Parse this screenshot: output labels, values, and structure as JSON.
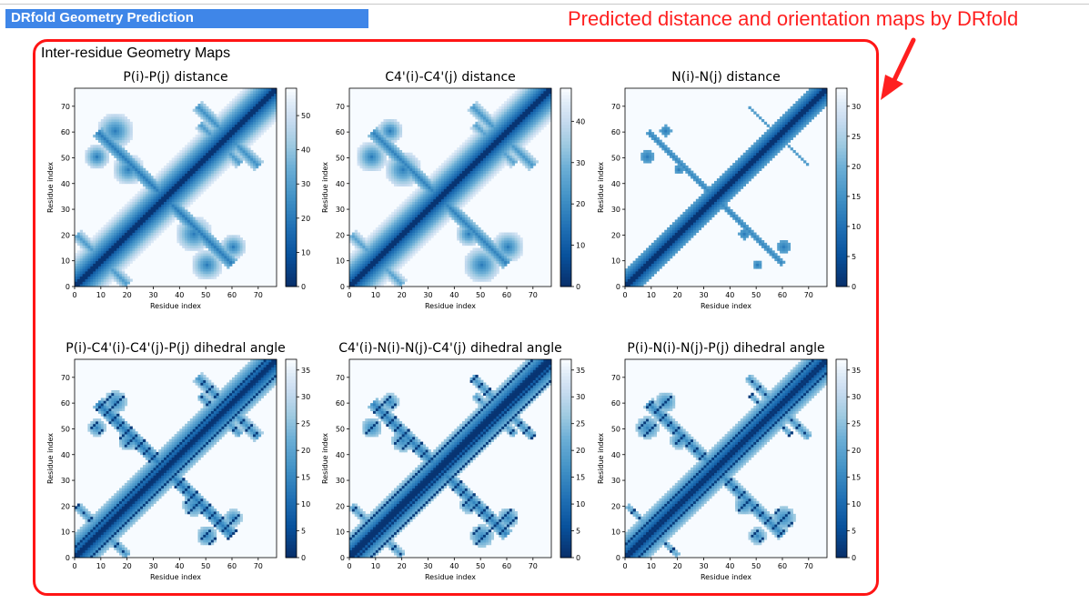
{
  "header": {
    "title": "DRfold Geometry Prediction"
  },
  "annotation": {
    "text": "Predicted distance and orientation maps by DRfold"
  },
  "panel": {
    "title": "Inter-residue Geometry Maps"
  },
  "colors": {
    "header_bg": "#3f86e8",
    "annotation": "#ff1f1f",
    "panel_border": "#ff1515",
    "colormap": "Blues_r"
  },
  "chart_data": [
    {
      "type": "heatmap",
      "title": "P(i)-P(j) distance",
      "xlabel": "Residue index",
      "ylabel": "Residue index",
      "n": 77,
      "xlim": [
        0,
        77
      ],
      "ylim": [
        0,
        77
      ],
      "xticks": [
        "0",
        "10",
        "20",
        "30",
        "40",
        "50",
        "60",
        "70"
      ],
      "yticks": [
        "0",
        "10",
        "20",
        "30",
        "40",
        "50",
        "60",
        "70"
      ],
      "colorbar": {
        "min": 0,
        "max": 58,
        "ticks": [
          "0",
          "10",
          "20",
          "30",
          "40",
          "50"
        ]
      }
    },
    {
      "type": "heatmap",
      "title": "C4'(i)-C4'(j) distance",
      "xlabel": "Residue index",
      "ylabel": "Residue index",
      "n": 77,
      "xlim": [
        0,
        77
      ],
      "ylim": [
        0,
        77
      ],
      "xticks": [
        "0",
        "10",
        "20",
        "30",
        "40",
        "50",
        "60",
        "70"
      ],
      "yticks": [
        "0",
        "10",
        "20",
        "30",
        "40",
        "50",
        "60",
        "70"
      ],
      "colorbar": {
        "min": 0,
        "max": 48,
        "ticks": [
          "0",
          "10",
          "20",
          "30",
          "40"
        ]
      }
    },
    {
      "type": "heatmap",
      "title": "N(i)-N(j) distance",
      "xlabel": "Residue index",
      "ylabel": "Residue index",
      "n": 77,
      "xlim": [
        0,
        77
      ],
      "ylim": [
        0,
        77
      ],
      "xticks": [
        "0",
        "10",
        "20",
        "30",
        "40",
        "50",
        "60",
        "70"
      ],
      "yticks": [
        "0",
        "10",
        "20",
        "30",
        "40",
        "50",
        "60",
        "70"
      ],
      "colorbar": {
        "min": 0,
        "max": 33,
        "ticks": [
          "0",
          "5",
          "10",
          "15",
          "20",
          "25",
          "30"
        ]
      }
    },
    {
      "type": "heatmap",
      "title": "P(i)-C4'(i)-C4'(j)-P(j) dihedral angle",
      "xlabel": "Residue index",
      "ylabel": "Residue index",
      "n": 77,
      "xlim": [
        0,
        77
      ],
      "ylim": [
        0,
        77
      ],
      "xticks": [
        "0",
        "10",
        "20",
        "30",
        "40",
        "50",
        "60",
        "70"
      ],
      "yticks": [
        "0",
        "10",
        "20",
        "30",
        "40",
        "50",
        "60",
        "70"
      ],
      "colorbar": {
        "min": 0,
        "max": 37,
        "ticks": [
          "0",
          "5",
          "10",
          "15",
          "20",
          "25",
          "30",
          "35"
        ]
      }
    },
    {
      "type": "heatmap",
      "title": "C4'(i)-N(i)-N(j)-C4'(j) dihedral angle",
      "xlabel": "Residue index",
      "ylabel": "Residue index",
      "n": 77,
      "xlim": [
        0,
        77
      ],
      "ylim": [
        0,
        77
      ],
      "xticks": [
        "0",
        "10",
        "20",
        "30",
        "40",
        "50",
        "60",
        "70"
      ],
      "yticks": [
        "0",
        "10",
        "20",
        "30",
        "40",
        "50",
        "60",
        "70"
      ],
      "colorbar": {
        "min": 0,
        "max": 37,
        "ticks": [
          "0",
          "5",
          "10",
          "15",
          "20",
          "25",
          "30",
          "35"
        ]
      }
    },
    {
      "type": "heatmap",
      "title": "P(i)-N(i)-N(j)-P(j) dihedral angle",
      "xlabel": "Residue index",
      "ylabel": "Residue index",
      "n": 77,
      "xlim": [
        0,
        77
      ],
      "ylim": [
        0,
        77
      ],
      "xticks": [
        "0",
        "10",
        "20",
        "30",
        "40",
        "50",
        "60",
        "70"
      ],
      "yticks": [
        "0",
        "10",
        "20",
        "30",
        "40",
        "50",
        "60",
        "70"
      ],
      "colorbar": {
        "min": 0,
        "max": 37,
        "ticks": [
          "0",
          "5",
          "10",
          "15",
          "20",
          "25",
          "30",
          "35"
        ]
      }
    }
  ]
}
